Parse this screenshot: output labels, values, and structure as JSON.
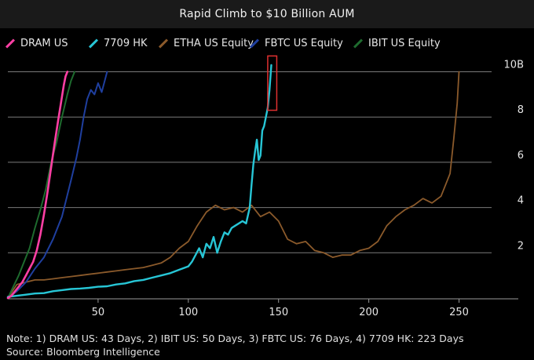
{
  "title": "Rapid Climb to $10 Billion AUM",
  "note": "Note: 1) DRAM US: 43 Days, 2) IBIT US: 50 Days, 3) FBTC US: 76 Days, 4) 7709 HK: 223 Days",
  "source": "Source: Bloomberg Intelligence",
  "chart_data": {
    "type": "line",
    "title": "Rapid Climb to $10 Billion AUM",
    "xlabel": "",
    "ylabel": "",
    "xlim": [
      0,
      275
    ],
    "ylim": [
      0,
      10.4
    ],
    "x_ticks": [
      "50",
      "100",
      "150",
      "200",
      "250"
    ],
    "x_tick_values": [
      50,
      100,
      150,
      200,
      250
    ],
    "y_ticks": [
      "2",
      "4",
      "6",
      "8",
      "10B"
    ],
    "y_tick_values": [
      2,
      4,
      6,
      8,
      10
    ],
    "grid": "horizontal",
    "legend_position": "top",
    "highlight_box": {
      "x": [
        144,
        149
      ],
      "y": [
        8.3,
        10.7
      ],
      "color": "#e03030"
    },
    "series": [
      {
        "name": "DRAM US",
        "color": "#ff3fa4",
        "width": 2.6,
        "x": [
          0,
          2,
          4,
          6,
          8,
          10,
          12,
          14,
          16,
          18,
          20,
          22,
          24,
          26,
          28,
          30,
          31,
          32,
          33
        ],
        "y": [
          0.0,
          0.1,
          0.3,
          0.5,
          0.7,
          1.0,
          1.3,
          1.6,
          2.1,
          2.8,
          3.7,
          4.7,
          5.8,
          6.9,
          7.9,
          8.9,
          9.4,
          9.8,
          10.0
        ]
      },
      {
        "name": "7709 HK",
        "color": "#27c6d6",
        "width": 2.4,
        "x": [
          0,
          5,
          10,
          15,
          20,
          25,
          30,
          35,
          40,
          45,
          50,
          55,
          60,
          65,
          70,
          75,
          80,
          85,
          90,
          95,
          100,
          102,
          104,
          106,
          108,
          110,
          112,
          114,
          116,
          118,
          120,
          122,
          124,
          126,
          128,
          130,
          132,
          134,
          135,
          136,
          137,
          138,
          139,
          140,
          141,
          142,
          143,
          144,
          145,
          146
        ],
        "y": [
          0.05,
          0.1,
          0.15,
          0.2,
          0.22,
          0.3,
          0.35,
          0.4,
          0.42,
          0.45,
          0.5,
          0.52,
          0.6,
          0.65,
          0.75,
          0.8,
          0.9,
          1.0,
          1.1,
          1.25,
          1.4,
          1.6,
          1.9,
          2.2,
          1.8,
          2.4,
          2.2,
          2.7,
          2.0,
          2.5,
          2.9,
          2.8,
          3.1,
          3.2,
          3.3,
          3.4,
          3.3,
          4.0,
          5.0,
          5.9,
          6.5,
          7.0,
          6.1,
          6.3,
          7.4,
          7.6,
          8.0,
          8.4,
          9.2,
          10.3
        ]
      },
      {
        "name": "ETHA US Equity",
        "color": "#8b5a2b",
        "width": 1.8,
        "x": [
          0,
          5,
          10,
          15,
          20,
          25,
          30,
          35,
          40,
          45,
          50,
          55,
          60,
          65,
          70,
          75,
          80,
          85,
          90,
          95,
          100,
          105,
          110,
          115,
          120,
          125,
          130,
          135,
          140,
          145,
          150,
          155,
          160,
          165,
          170,
          175,
          180,
          185,
          190,
          195,
          200,
          205,
          210,
          215,
          220,
          225,
          230,
          235,
          240,
          245,
          247,
          249,
          250
        ],
        "y": [
          0.0,
          0.6,
          0.7,
          0.8,
          0.8,
          0.85,
          0.9,
          0.95,
          1.0,
          1.05,
          1.1,
          1.15,
          1.2,
          1.25,
          1.3,
          1.35,
          1.45,
          1.55,
          1.8,
          2.2,
          2.5,
          3.2,
          3.8,
          4.1,
          3.9,
          4.0,
          3.8,
          4.1,
          3.6,
          3.8,
          3.4,
          2.6,
          2.4,
          2.5,
          2.1,
          2.0,
          1.8,
          1.9,
          1.9,
          2.1,
          2.2,
          2.5,
          3.2,
          3.6,
          3.9,
          4.1,
          4.4,
          4.2,
          4.5,
          5.5,
          7.0,
          8.6,
          10.0
        ]
      },
      {
        "name": "FBTC US Equity",
        "color": "#1f3f9f",
        "width": 2.0,
        "x": [
          0,
          5,
          10,
          15,
          20,
          25,
          30,
          35,
          38,
          40,
          42,
          44,
          46,
          48,
          50,
          52,
          54,
          55
        ],
        "y": [
          0.0,
          0.3,
          0.7,
          1.3,
          1.8,
          2.6,
          3.6,
          5.2,
          6.2,
          7.0,
          8.0,
          8.8,
          9.2,
          9.0,
          9.5,
          9.1,
          9.7,
          10.0
        ]
      },
      {
        "name": "IBIT US Equity",
        "color": "#1e6b2e",
        "width": 2.0,
        "x": [
          0,
          3,
          6,
          9,
          12,
          15,
          18,
          21,
          24,
          27,
          30,
          33,
          35,
          37
        ],
        "y": [
          0.0,
          0.5,
          1.0,
          1.6,
          2.2,
          3.1,
          3.9,
          4.8,
          6.0,
          6.9,
          8.0,
          9.0,
          9.6,
          10.0
        ]
      }
    ]
  }
}
